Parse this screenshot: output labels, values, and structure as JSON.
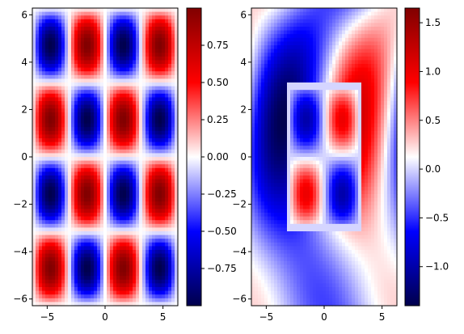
{
  "chart_data": [
    {
      "type": "heatmap",
      "title": "",
      "xlabel": "",
      "ylabel": "",
      "xlim": [
        -6.283,
        6.283
      ],
      "ylim": [
        -6.283,
        6.283
      ],
      "x_ticks": [
        -5,
        0,
        5
      ],
      "x_tick_labels": [
        "−5",
        "0",
        "5"
      ],
      "y_ticks": [
        -6,
        -4,
        -2,
        0,
        2,
        4,
        6
      ],
      "y_tick_labels": [
        "−6",
        "−4",
        "−2",
        "0",
        "2",
        "4",
        "6"
      ],
      "colormap": "seismic",
      "function": "sin(x)·sin(y)",
      "vmin": -1.0,
      "vmax": 1.0,
      "colorbar": {
        "ticks": [
          -0.75,
          -0.5,
          -0.25,
          0.0,
          0.25,
          0.5,
          0.75
        ],
        "tick_labels": [
          "−0.75",
          "−0.50",
          "−0.25",
          "0.00",
          "0.25",
          "0.50",
          "0.75"
        ]
      }
    },
    {
      "type": "heatmap",
      "title": "",
      "xlabel": "",
      "ylabel": "",
      "xlim": [
        -6.283,
        6.283
      ],
      "ylim": [
        -6.283,
        6.283
      ],
      "x_ticks": [
        -5,
        0,
        5
      ],
      "x_tick_labels": [
        "−5",
        "0",
        "5"
      ],
      "y_ticks": [
        -6,
        -4,
        -2,
        0,
        2,
        4,
        6
      ],
      "y_tick_labels": [
        "−6",
        "−4",
        "−2",
        "0",
        "2",
        "4",
        "6"
      ],
      "colormap": "seismic",
      "function": "sin(x)·sin(y) inside |x|,|y|≤π ; sin(x)·cos(y)·…+0.3·sin(x+y)-like outside",
      "vmin": -1.4,
      "vmax": 1.65,
      "colorbar": {
        "ticks": [
          -1.0,
          -0.5,
          0.0,
          0.5,
          1.0,
          1.5
        ],
        "tick_labels": [
          "−1.0",
          "−0.5",
          "0.0",
          "0.5",
          "1.0",
          "1.5"
        ]
      }
    }
  ]
}
